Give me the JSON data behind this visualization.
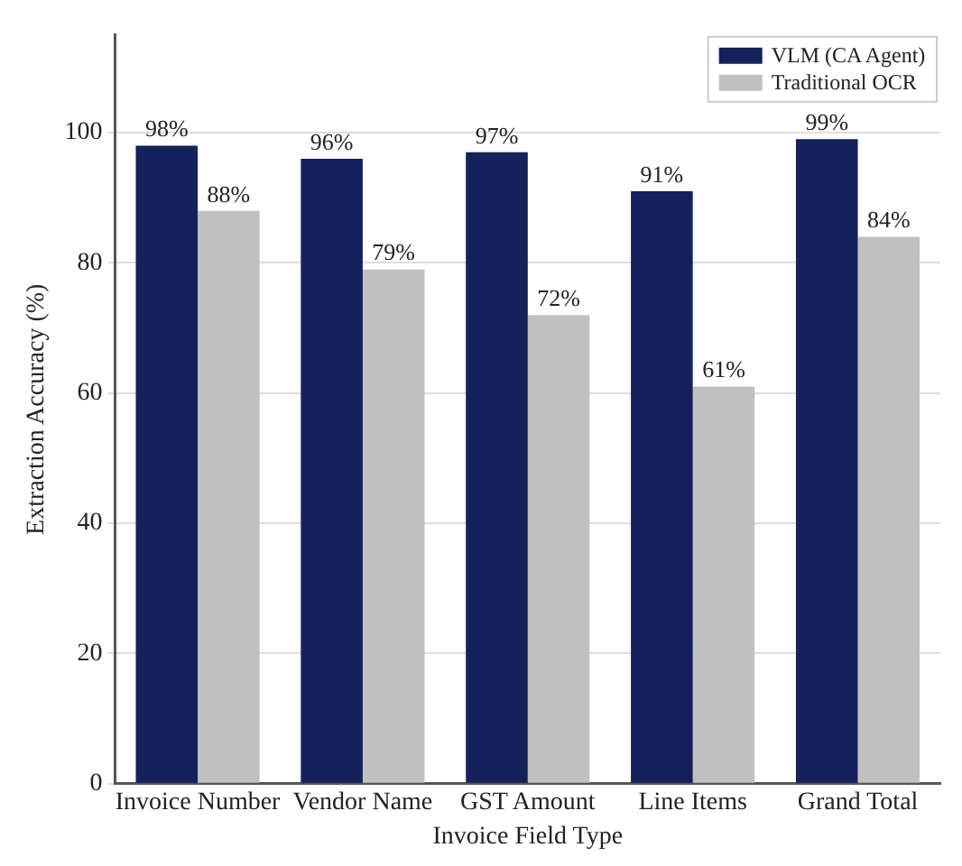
{
  "chart_data": {
    "type": "bar",
    "xlabel": "Invoice Field Type",
    "ylabel": "Extraction Accuracy (%)",
    "categories": [
      "Invoice Number",
      "Vendor Name",
      "GST Amount",
      "Line Items",
      "Grand Total"
    ],
    "series": [
      {
        "name": "VLM (CA Agent)",
        "color": "#14215a",
        "values": [
          98,
          96,
          97,
          91,
          99
        ],
        "value_labels": [
          "98%",
          "96%",
          "97%",
          "91%",
          "99%"
        ]
      },
      {
        "name": "Traditional OCR",
        "color": "#c0c0c0",
        "values": [
          88,
          79,
          72,
          61,
          84
        ],
        "value_labels": [
          "88%",
          "79%",
          "72%",
          "61%",
          "84%"
        ]
      }
    ],
    "ylim": [
      0,
      115
    ],
    "yticks": [
      0,
      20,
      40,
      60,
      80,
      100
    ],
    "grid": "y",
    "legend": "top right"
  }
}
